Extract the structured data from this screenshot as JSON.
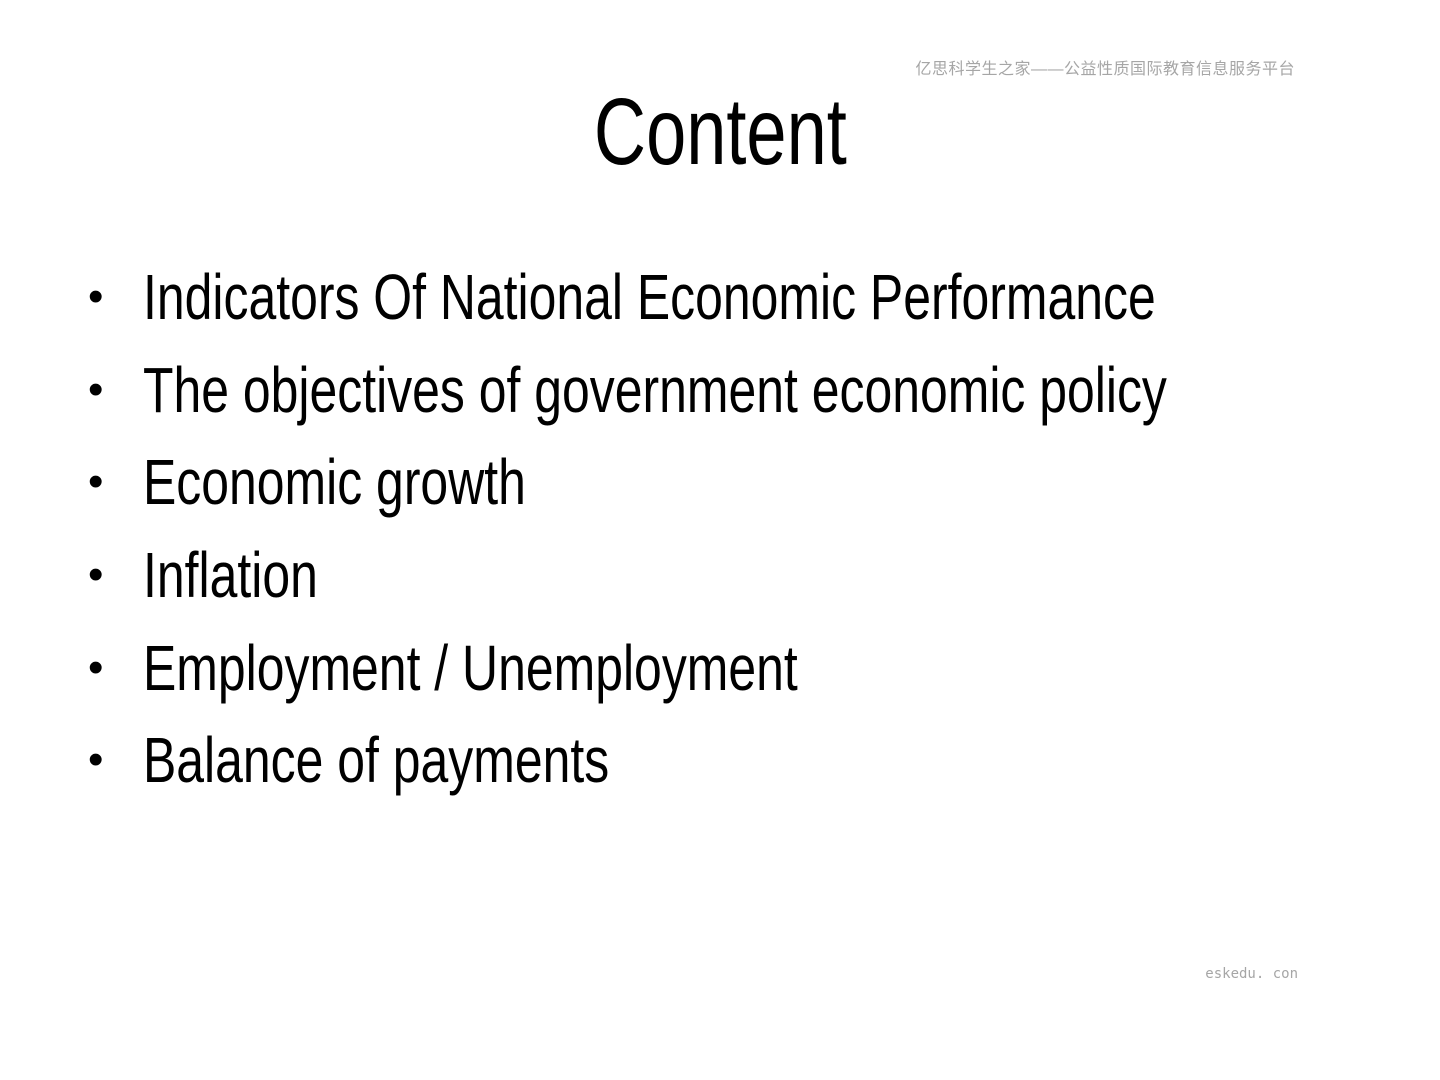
{
  "slide": {
    "watermark": "亿思科学生之家——公益性质国际教育信息服务平台",
    "title": "Content",
    "bullet_glyph": "•",
    "bullets": [
      "Indicators Of National Economic Performance",
      "The objectives of government economic policy",
      "Economic growth",
      "Inflation",
      "Employment / Unemployment",
      "Balance of payments"
    ],
    "footer": "eskedu. con",
    "colors": {
      "text": "#000000",
      "muted": "#a6a6a6",
      "background": "#ffffff"
    }
  }
}
